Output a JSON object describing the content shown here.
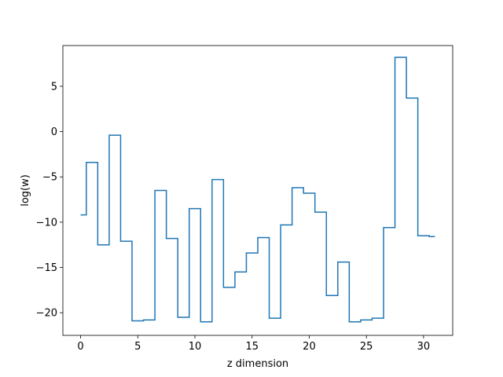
{
  "chart_data": {
    "type": "line",
    "drawstyle": "steps-mid",
    "xlabel": "z dimension",
    "ylabel": "log(w)",
    "xlim": [
      -1.55,
      32.55
    ],
    "ylim": [
      -22.5,
      9.5
    ],
    "xticks": [
      0,
      5,
      10,
      15,
      20,
      25,
      30
    ],
    "yticks": [
      -20,
      -15,
      -10,
      -5,
      0,
      5
    ],
    "grid": false,
    "legend": "none",
    "line_color": "#1f77b4",
    "x": [
      0,
      1,
      2,
      3,
      4,
      5,
      6,
      7,
      8,
      9,
      10,
      11,
      12,
      13,
      14,
      15,
      16,
      17,
      18,
      19,
      20,
      21,
      22,
      23,
      24,
      25,
      26,
      27,
      28,
      29,
      30,
      31
    ],
    "y": [
      -9.2,
      -3.4,
      -12.5,
      -0.4,
      -12.1,
      -20.9,
      -20.8,
      -6.5,
      -11.8,
      -20.5,
      -8.5,
      -21.0,
      -5.3,
      -17.2,
      -15.5,
      -13.4,
      -11.7,
      -20.6,
      -10.3,
      -6.2,
      -6.8,
      -8.9,
      -18.1,
      -14.4,
      -21.0,
      -20.8,
      -20.6,
      -10.6,
      8.2,
      3.7,
      -11.5,
      -11.6
    ]
  }
}
